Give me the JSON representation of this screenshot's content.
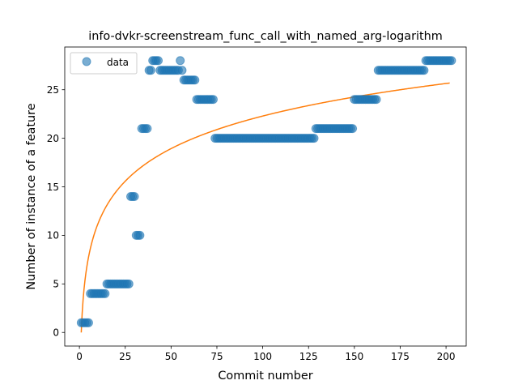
{
  "chart_data": {
    "type": "scatter",
    "title": "info-dvkr-screenstream_func_call_with_named_arg-logarithm",
    "xlabel": "Commit number",
    "ylabel": "Number of instance of a feature",
    "xlim": [
      -8,
      211
    ],
    "ylim": [
      -1.4,
      29.4
    ],
    "xticks": [
      0,
      25,
      50,
      75,
      100,
      125,
      150,
      175,
      200
    ],
    "yticks": [
      0,
      5,
      10,
      15,
      20,
      25
    ],
    "grid": false,
    "legend": {
      "position": "upper-left",
      "entries": [
        "data"
      ]
    },
    "series": [
      {
        "name": "data",
        "kind": "points",
        "color": "#1f77b4",
        "x_start": 1,
        "values": [
          1,
          1,
          1,
          1,
          1,
          4,
          4,
          4,
          4,
          4,
          4,
          4,
          4,
          4,
          5,
          5,
          5,
          5,
          5,
          5,
          5,
          5,
          5,
          5,
          5,
          5,
          5,
          14,
          14,
          14,
          10,
          10,
          10,
          21,
          21,
          21,
          21,
          27,
          27,
          28,
          28,
          28,
          28,
          27,
          27,
          27,
          27,
          27,
          27,
          27,
          27,
          27,
          27,
          27,
          28,
          27,
          26,
          26,
          26,
          26,
          26,
          26,
          26,
          24,
          24,
          24,
          24,
          24,
          24,
          24,
          24,
          24,
          24,
          20,
          20,
          20,
          20,
          20,
          20,
          20,
          20,
          20,
          20,
          20,
          20,
          20,
          20,
          20,
          20,
          20,
          20,
          20,
          20,
          20,
          20,
          20,
          20,
          20,
          20,
          20,
          20,
          20,
          20,
          20,
          20,
          20,
          20,
          20,
          20,
          20,
          20,
          20,
          20,
          20,
          20,
          20,
          20,
          20,
          20,
          20,
          20,
          20,
          20,
          20,
          20,
          20,
          20,
          20,
          21,
          21,
          21,
          21,
          21,
          21,
          21,
          21,
          21,
          21,
          21,
          21,
          21,
          21,
          21,
          21,
          21,
          21,
          21,
          21,
          21,
          24,
          24,
          24,
          24,
          24,
          24,
          24,
          24,
          24,
          24,
          24,
          24,
          24,
          27,
          27,
          27,
          27,
          27,
          27,
          27,
          27,
          27,
          27,
          27,
          27,
          27,
          27,
          27,
          27,
          27,
          27,
          27,
          27,
          27,
          27,
          27,
          27,
          27,
          27,
          28,
          28,
          28,
          28,
          28,
          28,
          28,
          28,
          28,
          28,
          28,
          28,
          28,
          28,
          28
        ]
      },
      {
        "name": "",
        "kind": "fit-line",
        "color": "#ff7f0e",
        "equation": "y = 4.84 * ln(x)",
        "a": 4.84,
        "x_range": [
          1,
          202
        ]
      }
    ]
  }
}
